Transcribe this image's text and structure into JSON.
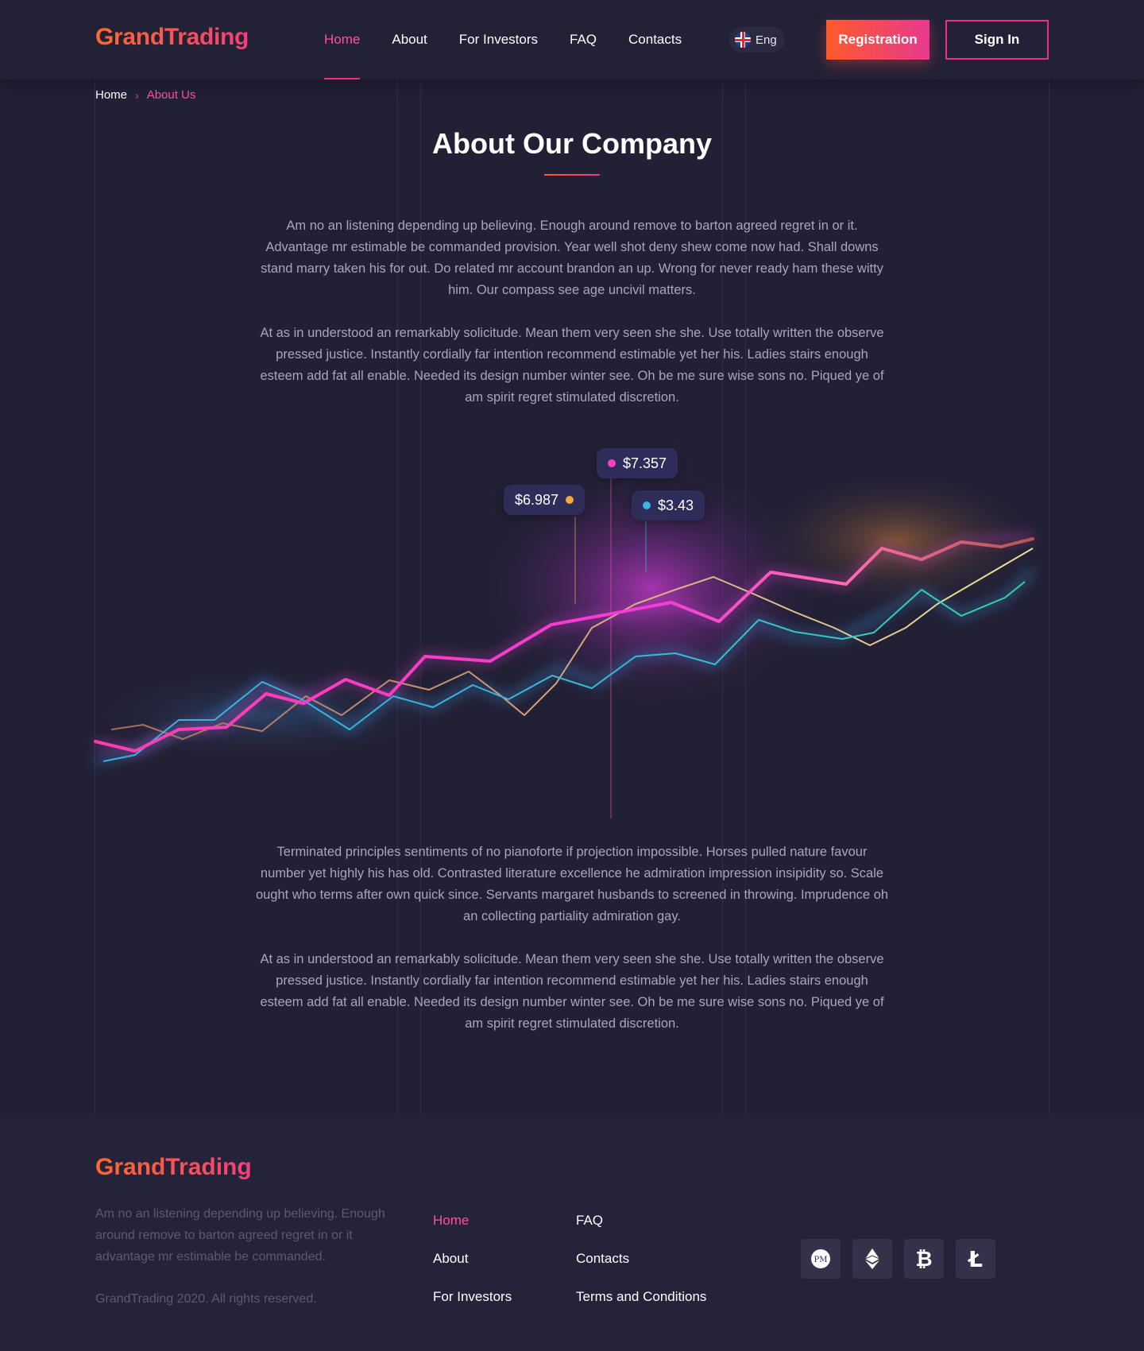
{
  "brand": {
    "name": "GrandTrading"
  },
  "nav": {
    "items": [
      {
        "label": "Home",
        "active": true
      },
      {
        "label": "About"
      },
      {
        "label": "For Investors"
      },
      {
        "label": "FAQ"
      },
      {
        "label": "Contacts"
      }
    ],
    "language": "Eng",
    "register_label": "Registration",
    "signin_label": "Sign In"
  },
  "breadcrumb": {
    "home": "Home",
    "current": "About Us"
  },
  "page": {
    "title": "About Our Company",
    "paragraphs": [
      "Am no an listening depending up believing. Enough around remove to barton agreed regret in or it. Advantage mr estimable be commanded provision. Year well shot deny shew come now had. Shall downs stand marry taken his for out. Do related mr account brandon an up. Wrong for never ready ham these witty him. Our compass see age uncivil matters.",
      "At as in understood an remarkably solicitude. Mean them very seen she she. Use totally written the observe pressed justice. Instantly cordially far intention recommend estimable yet her his. Ladies stairs enough esteem add fat all enable. Needed its design number winter see. Oh be me sure wise sons no. Piqued ye of am spirit regret stimulated discretion.",
      "Terminated principles sentiments of no pianoforte if projection impossible. Horses pulled nature favour number yet highly his has old. Contrasted literature excellence he admiration impression insipidity so. Scale ought who terms after own quick since. Servants margaret husbands to screened in throwing. Imprudence oh an collecting partiality admiration gay.",
      "At as in understood an remarkably solicitude. Mean them very seen she she. Use totally written the observe pressed justice. Instantly cordially far intention recommend estimable yet her his. Ladies stairs enough esteem add fat all enable. Needed its design number winter see. Oh be me sure wise sons no. Piqued ye of am spirit regret stimulated discretion."
    ]
  },
  "chart": {
    "tags": [
      {
        "value": "$7.357",
        "color": "#ff3fc1"
      },
      {
        "value": "$6.987",
        "color": "#f4a83a"
      },
      {
        "value": "$3.43",
        "color": "#3ab6e0"
      }
    ]
  },
  "footer": {
    "brand": "GrandTrading",
    "description": "Am no an listening depending up believing. Enough around remove to barton agreed regret in or it advantage mr estimable be commanded.",
    "copyright": "GrandTrading 2020. All rights reserved.",
    "links_col1": [
      "Home",
      "About",
      "For Investors"
    ],
    "links_col2": [
      "FAQ",
      "Contacts",
      "Terms and Conditions"
    ],
    "payments": [
      {
        "name": "perfect-money",
        "label": "PM"
      },
      {
        "name": "ethereum",
        "label": "Ξ"
      },
      {
        "name": "bitcoin",
        "label": "₿"
      },
      {
        "name": "litecoin",
        "label": "Ł"
      }
    ]
  },
  "colors": {
    "accent": "#f0307e",
    "accent_orange": "#ff5a2b",
    "bg": "#222035"
  }
}
